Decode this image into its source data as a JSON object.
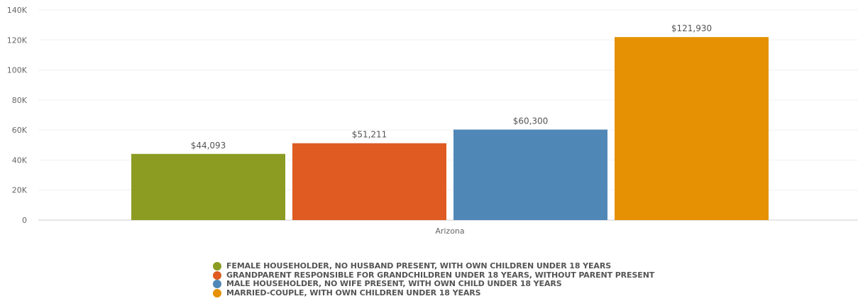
{
  "chart_data": {
    "type": "bar",
    "categories": [
      "Arizona"
    ],
    "series": [
      {
        "name": "FEMALE HOUSEHOLDER, NO HUSBAND PRESENT, WITH OWN CHILDREN UNDER 18 YEARS",
        "values": [
          44093
        ],
        "label": "$44,093",
        "color": "#8c9c23"
      },
      {
        "name": "GRANDPARENT RESPONSIBLE FOR GRANDCHILDREN UNDER 18 YEARS, WITHOUT PARENT PRESENT",
        "values": [
          51211
        ],
        "label": "$51,211",
        "color": "#df5b21"
      },
      {
        "name": "MALE HOUSEHOLDER, NO WIFE PRESENT, WITH OWN CHILD UNDER 18 YEARS",
        "values": [
          60300
        ],
        "label": "$60,300",
        "color": "#4f88b7"
      },
      {
        "name": "MARRIED-COUPLE, WITH OWN CHILDREN UNDER 18 YEARS",
        "values": [
          121930
        ],
        "label": "$121,930",
        "color": "#e59103"
      }
    ],
    "ylim": [
      0,
      140000
    ],
    "yticks": [
      0,
      20000,
      40000,
      60000,
      80000,
      100000,
      120000,
      140000
    ],
    "ytick_labels": [
      "0",
      "20K",
      "40K",
      "60K",
      "80K",
      "100K",
      "120K",
      "140K"
    ],
    "xlabel": "",
    "ylabel": "",
    "grid": true,
    "legend_position": "bottom"
  }
}
